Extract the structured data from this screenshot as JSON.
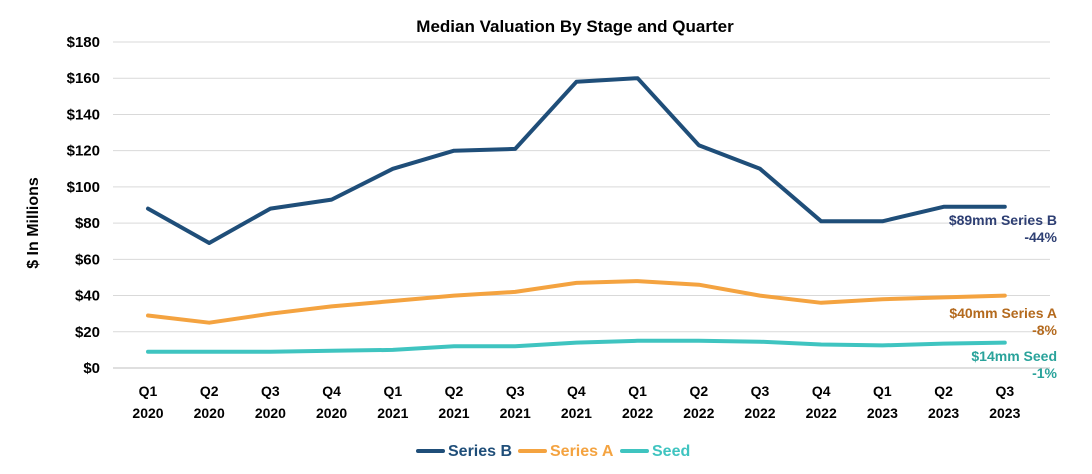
{
  "chart_data": {
    "type": "line",
    "title": "Median Valuation By Stage and Quarter",
    "xlabel": "",
    "ylabel": "$ In Millions",
    "categories": [
      [
        "Q1",
        "2020"
      ],
      [
        "Q2",
        "2020"
      ],
      [
        "Q3",
        "2020"
      ],
      [
        "Q4",
        "2020"
      ],
      [
        "Q1",
        "2021"
      ],
      [
        "Q2",
        "2021"
      ],
      [
        "Q3",
        "2021"
      ],
      [
        "Q4",
        "2021"
      ],
      [
        "Q1",
        "2022"
      ],
      [
        "Q2",
        "2022"
      ],
      [
        "Q3",
        "2022"
      ],
      [
        "Q4",
        "2022"
      ],
      [
        "Q1",
        "2023"
      ],
      [
        "Q2",
        "2023"
      ],
      [
        "Q3",
        "2023"
      ]
    ],
    "ylim": [
      0,
      180
    ],
    "yticks": [
      0,
      20,
      40,
      60,
      80,
      100,
      120,
      140,
      160,
      180
    ],
    "ytick_labels": [
      "$0",
      "$20",
      "$40",
      "$60",
      "$80",
      "$100",
      "$120",
      "$140",
      "$160",
      "$180"
    ],
    "grid": true,
    "legend_position": "bottom",
    "series": [
      {
        "name": "Series B",
        "color": "#1f4e79",
        "values": [
          88,
          69,
          88,
          93,
          110,
          120,
          121,
          158,
          160,
          123,
          110,
          81,
          81,
          89,
          89
        ]
      },
      {
        "name": "Series A",
        "color": "#f4a340",
        "values": [
          29,
          25,
          30,
          34,
          37,
          40,
          42,
          47,
          48,
          46,
          40,
          36,
          38,
          39,
          40
        ]
      },
      {
        "name": "Seed",
        "color": "#3fc4c0",
        "values": [
          9,
          9,
          9,
          9.5,
          10,
          12,
          12,
          14,
          15,
          15,
          14.5,
          13,
          12.5,
          13.5,
          14
        ]
      }
    ],
    "annotations": [
      {
        "lines": [
          "$89mm Series B",
          "-44%"
        ],
        "color": "#2e3f73"
      },
      {
        "lines": [
          "$40mm Series A",
          "-8%"
        ],
        "color": "#b46a1e"
      },
      {
        "lines": [
          "$14mm Seed",
          "-1%"
        ],
        "color": "#2aa39b"
      }
    ]
  }
}
